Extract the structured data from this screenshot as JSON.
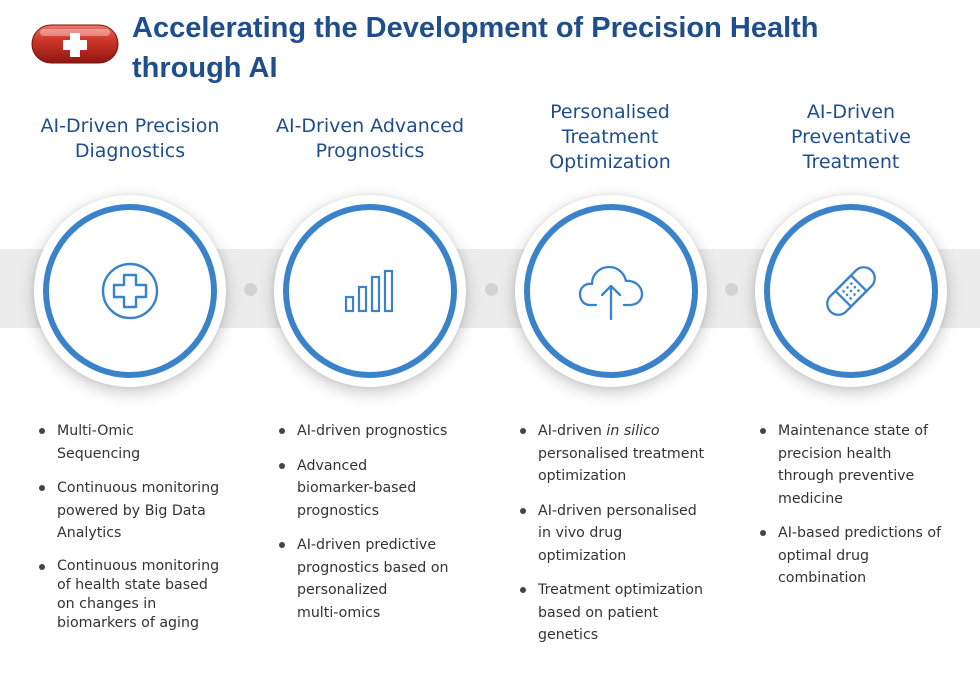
{
  "title": "Accelerating the Development of Precision Health through AI",
  "pill_icon": "medicine-capsule-with-cross",
  "colors": {
    "title": "#1f4e8c",
    "ring": "#3a82c9",
    "icon": "#3a82c9",
    "band": "#ececec",
    "pill": "#c8281e"
  },
  "columns": [
    {
      "title_lines": [
        "AI-Driven Precision",
        "Diagnostics"
      ],
      "icon": "medical-cross-icon",
      "bullets": [
        {
          "lines": [
            "Multi-Omic",
            "Sequencing"
          ]
        },
        {
          "lines": [
            "Continuous  monitoring",
            "powered by Big Data",
            "Analytics"
          ]
        },
        {
          "lines": [
            "Continuous monitoring",
            "of health state based",
            "on changes in",
            "biomarkers of aging"
          ]
        }
      ]
    },
    {
      "title_lines": [
        "AI-Driven Advanced",
        "Prognostics"
      ],
      "icon": "bar-chart-icon",
      "bullets": [
        {
          "lines": [
            "AI-driven prognostics"
          ]
        },
        {
          "lines": [
            "Advanced",
            "biomarker-based",
            "prognostics"
          ]
        },
        {
          "lines": [
            "AI-driven predictive",
            "prognostics based on",
            "personalized",
            "multi-omics"
          ]
        }
      ]
    },
    {
      "title_lines": [
        "Personalised",
        "Treatment",
        "Optimization"
      ],
      "icon": "cloud-upload-icon",
      "bullets": [
        {
          "prefix": "AI-driven ",
          "italic": "in silico",
          "lines": [
            "personalised treatment",
            "optimization"
          ]
        },
        {
          "lines": [
            "AI-driven personalised",
            "in vivo drug",
            "optimization"
          ]
        },
        {
          "lines": [
            "Treatment optimization",
            "based on patient",
            "genetics"
          ]
        }
      ]
    },
    {
      "title_lines": [
        "AI-Driven",
        "Preventative",
        "Treatment"
      ],
      "icon": "bandage-icon",
      "bullets": [
        {
          "lines": [
            "Maintenance state of",
            "precision health",
            "through preventive",
            "medicine"
          ]
        },
        {
          "lines": [
            "AI-based predictions of",
            "optimal drug",
            "combination"
          ]
        }
      ]
    }
  ]
}
